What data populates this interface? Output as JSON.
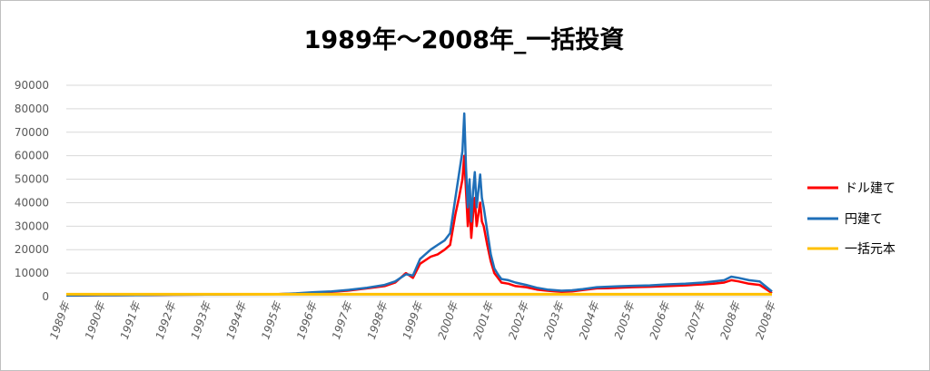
{
  "chart_data": {
    "type": "line",
    "title": "1989年～2008年_一括投資",
    "xlabel": "",
    "ylabel": "",
    "x_ticks": [
      "1989年",
      "1990年",
      "1991年",
      "1992年",
      "1993年",
      "1994年",
      "1995年",
      "1996年",
      "1997年",
      "1998年",
      "1999年",
      "2000年",
      "2001年",
      "2002年",
      "2003年",
      "2004年",
      "2005年",
      "2006年",
      "2007年",
      "2008年",
      "2008年"
    ],
    "y_ticks": [
      "0",
      "10000",
      "20000",
      "30000",
      "40000",
      "50000",
      "60000",
      "70000",
      "80000",
      "90000"
    ],
    "ylim": [
      0,
      90000
    ],
    "xlim": [
      1989.0,
      2008.95
    ],
    "grid": true,
    "legend_position": "right",
    "series": [
      {
        "name": "ドル建て",
        "color": "#ff0000",
        "x": [
          1989.0,
          1990.0,
          1991.0,
          1992.0,
          1993.0,
          1994.0,
          1995.0,
          1995.5,
          1996.0,
          1996.5,
          1997.0,
          1997.5,
          1998.0,
          1998.3,
          1998.6,
          1998.8,
          1999.0,
          1999.3,
          1999.5,
          1999.7,
          1999.85,
          2000.0,
          2000.1,
          2000.2,
          2000.25,
          2000.3,
          2000.35,
          2000.4,
          2000.45,
          2000.5,
          2000.55,
          2000.6,
          2000.65,
          2000.7,
          2000.75,
          2000.8,
          2000.9,
          2001.0,
          2001.1,
          2001.2,
          2001.3,
          2001.5,
          2001.7,
          2002.0,
          2002.3,
          2002.6,
          2003.0,
          2003.3,
          2003.6,
          2004.0,
          2004.3,
          2004.6,
          2005.0,
          2005.5,
          2006.0,
          2006.5,
          2007.0,
          2007.3,
          2007.6,
          2007.8,
          2008.0,
          2008.3,
          2008.6,
          2008.8,
          2008.95
        ],
        "y": [
          500,
          600,
          700,
          800,
          900,
          1000,
          1100,
          1300,
          1700,
          2000,
          2600,
          3500,
          4500,
          6000,
          10000,
          8000,
          14000,
          17000,
          18000,
          20000,
          22000,
          35000,
          42000,
          50000,
          60000,
          45000,
          30000,
          40000,
          25000,
          35000,
          42000,
          30000,
          35000,
          40000,
          32000,
          30000,
          22000,
          15000,
          10000,
          8000,
          6000,
          5500,
          4500,
          4000,
          3000,
          2500,
          2000,
          2200,
          2800,
          3500,
          3600,
          3800,
          4000,
          4200,
          4500,
          4800,
          5200,
          5500,
          6000,
          7000,
          6500,
          5500,
          5000,
          3000,
          1500
        ]
      },
      {
        "name": "円建て",
        "color": "#1f6fb8",
        "x": [
          1989.0,
          1990.0,
          1991.0,
          1992.0,
          1993.0,
          1994.0,
          1995.0,
          1995.5,
          1996.0,
          1996.5,
          1997.0,
          1997.5,
          1998.0,
          1998.3,
          1998.6,
          1998.8,
          1999.0,
          1999.3,
          1999.5,
          1999.7,
          1999.85,
          2000.0,
          2000.1,
          2000.2,
          2000.25,
          2000.3,
          2000.35,
          2000.4,
          2000.45,
          2000.5,
          2000.55,
          2000.6,
          2000.65,
          2000.7,
          2000.75,
          2000.8,
          2000.9,
          2001.0,
          2001.1,
          2001.2,
          2001.3,
          2001.5,
          2001.7,
          2002.0,
          2002.3,
          2002.6,
          2003.0,
          2003.3,
          2003.6,
          2004.0,
          2004.3,
          2004.6,
          2005.0,
          2005.5,
          2006.0,
          2006.5,
          2007.0,
          2007.3,
          2007.6,
          2007.8,
          2008.0,
          2008.3,
          2008.6,
          2008.8,
          2008.95
        ],
        "y": [
          500,
          600,
          700,
          800,
          900,
          1000,
          1100,
          1400,
          1900,
          2200,
          2900,
          3800,
          5000,
          6500,
          9500,
          9000,
          16000,
          20000,
          22000,
          24000,
          27000,
          42000,
          52000,
          62000,
          78000,
          55000,
          38000,
          50000,
          32000,
          45000,
          53000,
          38000,
          45000,
          52000,
          42000,
          38000,
          28000,
          18000,
          12000,
          9500,
          7500,
          7000,
          6000,
          5000,
          3800,
          3000,
          2500,
          2700,
          3200,
          4000,
          4200,
          4400,
          4600,
          4800,
          5200,
          5500,
          6000,
          6500,
          7000,
          8500,
          8000,
          7000,
          6500,
          4000,
          2200
        ]
      },
      {
        "name": "一括元本",
        "color": "#ffc000",
        "x": [
          1989.0,
          2008.95
        ],
        "y": [
          1000,
          1000
        ]
      }
    ]
  }
}
